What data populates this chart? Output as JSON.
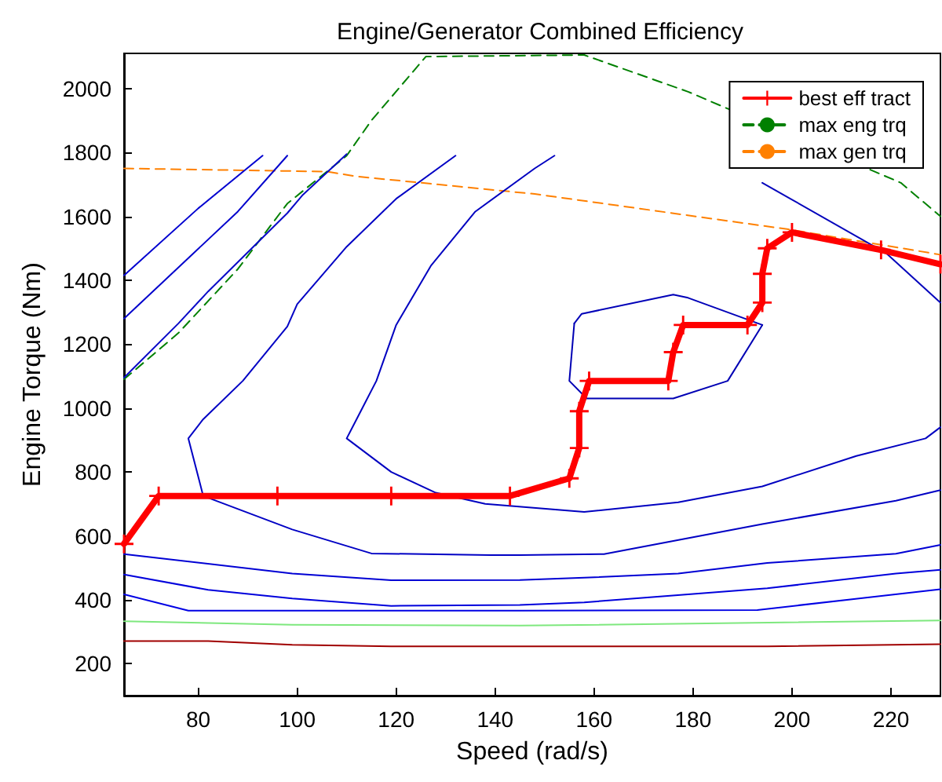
{
  "chart_data": {
    "type": "line",
    "title": "Engine/Generator Combined Efficiency",
    "xlabel": "Speed (rad/s)",
    "ylabel": "Engine Torque (Nm)",
    "xlim": [
      65,
      230
    ],
    "xticks": [
      80,
      100,
      120,
      140,
      160,
      180,
      200,
      220
    ],
    "ylim": [
      100,
      2110
    ],
    "yticks": [
      200,
      400,
      600,
      800,
      1000,
      1200,
      1400,
      1600,
      1800,
      2000
    ],
    "grid": false,
    "legend": "top right",
    "series": [
      {
        "name": "best eff tract",
        "color": "#ff0000",
        "marker": "cross",
        "x": [
          65,
          72,
          96,
          119,
          143,
          155,
          157,
          157,
          159,
          175,
          176,
          178,
          191,
          194,
          194,
          195,
          200,
          218,
          230
        ],
        "values": [
          575,
          725,
          725,
          725,
          725,
          780,
          875,
          990,
          1085,
          1085,
          1175,
          1260,
          1260,
          1330,
          1420,
          1500,
          1550,
          1495,
          1450
        ]
      },
      {
        "name": "max eng trq",
        "color": "#008000",
        "line_style": "dashed",
        "x": [
          65,
          76,
          88,
          98,
          110,
          115,
          126,
          158,
          179,
          222,
          230
        ],
        "values": [
          1090,
          1235,
          1435,
          1640,
          1790,
          1900,
          2100,
          2105,
          1990,
          1705,
          1600
        ]
      },
      {
        "name": "max gen trq",
        "color": "#ff8000",
        "line_style": "dashed",
        "x": [
          65,
          106,
          112,
          148,
          199,
          230
        ],
        "values": [
          1750,
          1740,
          1725,
          1670,
          1560,
          1480
        ]
      },
      {
        "color": "#0000d0",
        "x": [
          65,
          80,
          93
        ],
        "values": [
          1415,
          1625,
          1790
        ]
      },
      {
        "color": "#0000cc",
        "x": [
          65,
          88,
          98
        ],
        "values": [
          1280,
          1615,
          1790
        ]
      },
      {
        "color": "#0808c8",
        "x": [
          65,
          76,
          82,
          98,
          101,
          110
        ],
        "values": [
          1095,
          1265,
          1365,
          1610,
          1665,
          1795
        ]
      },
      {
        "color": "#0000c4",
        "x": [
          132,
          120,
          110,
          100,
          98,
          89,
          81,
          78,
          81,
          99,
          115,
          139,
          145,
          162,
          194,
          221,
          230
        ],
        "values": [
          1790,
          1655,
          1505,
          1325,
          1255,
          1085,
          965,
          905,
          725,
          620,
          545,
          540,
          540,
          543,
          637,
          710,
          743
        ]
      },
      {
        "color": "#0000c0",
        "x": [
          152,
          148,
          136,
          127,
          120,
          116,
          112,
          110,
          119,
          128,
          138,
          158,
          177,
          194,
          213,
          227,
          230
        ],
        "values": [
          1790,
          1750,
          1615,
          1445,
          1260,
          1085,
          965,
          905,
          800,
          735,
          700,
          675,
          705,
          755,
          850,
          905,
          940
        ]
      },
      {
        "color": "#0404bc",
        "x": [
          194,
          219,
          230
        ],
        "values": [
          1705,
          1485,
          1330
        ]
      },
      {
        "color": "#0000b8",
        "x": [
          156,
          157.5,
          176,
          179,
          194
        ],
        "values": [
          1265,
          1295,
          1355,
          1345,
          1260
        ]
      },
      {
        "color": "#0000b4",
        "x": [
          194,
          187,
          176,
          158.5,
          155,
          156
        ],
        "values": [
          1260,
          1085,
          1030,
          1030,
          1085,
          1265
        ]
      },
      {
        "color": "#0000d4",
        "x": [
          65,
          99,
          119,
          145,
          158,
          177,
          195,
          221,
          230
        ],
        "values": [
          543,
          482,
          461,
          462,
          469,
          482,
          515,
          544,
          572
        ]
      },
      {
        "color": "#0000dc",
        "x": [
          65,
          82,
          99,
          119,
          145,
          158,
          195,
          221,
          230
        ],
        "values": [
          479,
          431,
          404,
          381,
          384,
          392,
          436,
          482,
          494
        ]
      },
      {
        "color": "#0000e4",
        "x": [
          65,
          78,
          145,
          193,
          230
        ],
        "values": [
          417,
          366,
          366,
          368,
          433
        ]
      },
      {
        "color": "#7ee87e",
        "x": [
          65,
          99,
          145,
          230
        ],
        "values": [
          333,
          322,
          319,
          335
        ]
      },
      {
        "color": "#a00000",
        "x": [
          65,
          82,
          99,
          119,
          145,
          195,
          230
        ],
        "values": [
          271,
          271,
          259,
          254,
          254,
          254,
          261
        ]
      }
    ]
  }
}
